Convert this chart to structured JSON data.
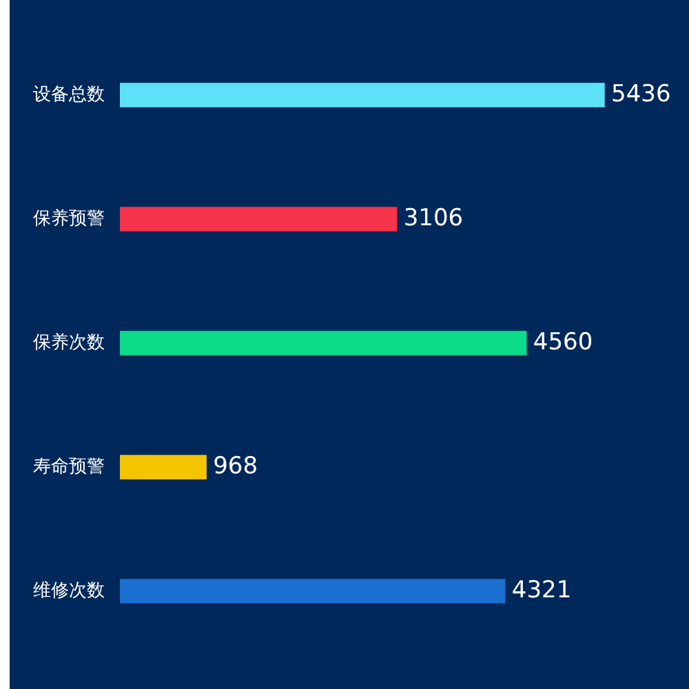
{
  "chart_data": {
    "type": "bar",
    "orientation": "horizontal",
    "categories": [
      "设备总数",
      "保养预警",
      "保养次数",
      "寿命预警",
      "维修次数"
    ],
    "values": [
      5436,
      3106,
      4560,
      968,
      4321
    ],
    "colors": [
      "#5ce1f8",
      "#f5334a",
      "#0ddb8a",
      "#f5c400",
      "#1a6fd0"
    ],
    "data_labels": true,
    "tick_labels": "y",
    "grid": false,
    "legend": false
  }
}
